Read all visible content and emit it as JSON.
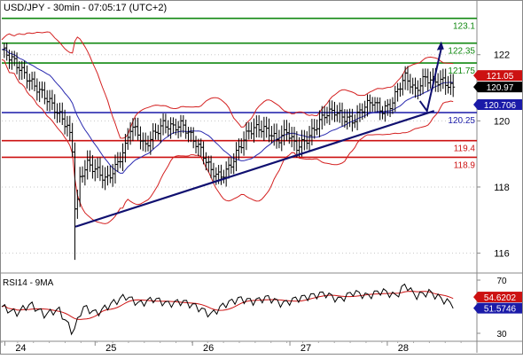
{
  "chart_data": {
    "type": "candlestick",
    "title": "USD/JPY - 30min - 07:05:17 (UTC+2)",
    "price_axis": {
      "ylim": [
        115.4,
        123.6
      ],
      "ticks": [
        116,
        118,
        120,
        122
      ]
    },
    "x_axis": {
      "tick_labels": [
        "24",
        "25",
        "26",
        "27",
        "28"
      ]
    },
    "colors": {
      "resistance": "#118811",
      "support": "#cc1111",
      "pivot": "#1a1aa8",
      "trendline": "#101070",
      "bollinger": "#d42020",
      "moving_average": "#2a2ab0",
      "price_bars": "#000000",
      "rsi_line": "#000000",
      "rsi_ma": "#cc1111"
    },
    "horizontal_levels": [
      {
        "name": "resistance-3",
        "value": 123.1,
        "label": "123.1",
        "role": "resistance"
      },
      {
        "name": "resistance-2",
        "value": 122.35,
        "label": "122.35",
        "role": "resistance"
      },
      {
        "name": "resistance-1",
        "value": 121.75,
        "label": "121.75",
        "role": "resistance"
      },
      {
        "name": "pivot",
        "value": 120.25,
        "label": "120.25",
        "role": "pivot"
      },
      {
        "name": "support-1",
        "value": 119.4,
        "label": "119.4",
        "role": "support"
      },
      {
        "name": "support-2",
        "value": 118.9,
        "label": "118.9",
        "role": "support"
      }
    ],
    "price_tags": [
      {
        "value": 121.05,
        "label": "121.05",
        "bg": "#cc1111",
        "fg": "#ffffff"
      },
      {
        "value": 120.97,
        "label": "120.97",
        "bg": "#000000",
        "fg": "#ffffff"
      },
      {
        "value": 120.706,
        "label": "120.706",
        "bg": "#1a1aa8",
        "fg": "#ffffff"
      }
    ],
    "trendline": {
      "from": [
        0,
        116.8
      ],
      "to": [
        1.0,
        120.3
      ]
    },
    "projection_arrow": {
      "from": [
        0.955,
        120.6
      ],
      "mid": [
        0.967,
        121.0
      ],
      "to": [
        1.0,
        122.35
      ]
    },
    "price_path": [
      [
        0.0,
        122.15
      ],
      [
        0.02,
        121.9
      ],
      [
        0.04,
        121.55
      ],
      [
        0.06,
        121.2
      ],
      [
        0.08,
        120.9
      ],
      [
        0.1,
        120.6
      ],
      [
        0.12,
        120.2
      ],
      [
        0.14,
        119.8
      ],
      [
        0.15,
        119.0
      ],
      [
        0.155,
        117.0
      ],
      [
        0.165,
        118.3
      ],
      [
        0.18,
        118.7
      ],
      [
        0.2,
        118.5
      ],
      [
        0.22,
        118.2
      ],
      [
        0.24,
        118.6
      ],
      [
        0.26,
        119.2
      ],
      [
        0.27,
        119.8
      ],
      [
        0.285,
        119.7
      ],
      [
        0.3,
        119.2
      ],
      [
        0.32,
        119.6
      ],
      [
        0.34,
        119.9
      ],
      [
        0.36,
        119.8
      ],
      [
        0.38,
        119.9
      ],
      [
        0.4,
        119.5
      ],
      [
        0.42,
        119.1
      ],
      [
        0.44,
        118.5
      ],
      [
        0.46,
        118.3
      ],
      [
        0.48,
        118.6
      ],
      [
        0.5,
        119.2
      ],
      [
        0.52,
        119.7
      ],
      [
        0.54,
        119.8
      ],
      [
        0.56,
        119.7
      ],
      [
        0.58,
        119.4
      ],
      [
        0.6,
        119.7
      ],
      [
        0.62,
        119.2
      ],
      [
        0.64,
        119.4
      ],
      [
        0.66,
        119.8
      ],
      [
        0.68,
        120.2
      ],
      [
        0.7,
        120.3
      ],
      [
        0.72,
        120.1
      ],
      [
        0.74,
        120.0
      ],
      [
        0.76,
        120.4
      ],
      [
        0.78,
        120.6
      ],
      [
        0.8,
        120.3
      ],
      [
        0.82,
        120.5
      ],
      [
        0.835,
        121.0
      ],
      [
        0.85,
        121.35
      ],
      [
        0.87,
        120.9
      ],
      [
        0.89,
        121.3
      ],
      [
        0.91,
        121.2
      ],
      [
        0.93,
        121.2
      ],
      [
        0.95,
        120.97
      ]
    ],
    "rsi": {
      "label": "RSI14 - 9MA",
      "ylim": [
        24,
        74
      ],
      "ticks": [
        30,
        70
      ],
      "tags": [
        {
          "value": 54.6202,
          "label": "54.6202",
          "bg": "#cc1111",
          "fg": "#ffffff"
        },
        {
          "value": 51.5746,
          "label": "51.5746",
          "bg": "#1a1aa8",
          "fg": "#ffffff"
        }
      ],
      "path": [
        [
          0.0,
          50
        ],
        [
          0.03,
          45
        ],
        [
          0.06,
          52
        ],
        [
          0.09,
          44
        ],
        [
          0.12,
          48
        ],
        [
          0.15,
          30
        ],
        [
          0.17,
          50
        ],
        [
          0.2,
          45
        ],
        [
          0.23,
          52
        ],
        [
          0.26,
          58
        ],
        [
          0.29,
          52
        ],
        [
          0.32,
          56
        ],
        [
          0.35,
          52
        ],
        [
          0.38,
          54
        ],
        [
          0.41,
          50
        ],
        [
          0.44,
          44
        ],
        [
          0.47,
          52
        ],
        [
          0.5,
          56
        ],
        [
          0.53,
          54
        ],
        [
          0.56,
          57
        ],
        [
          0.59,
          52
        ],
        [
          0.62,
          56
        ],
        [
          0.65,
          58
        ],
        [
          0.68,
          60
        ],
        [
          0.71,
          55
        ],
        [
          0.74,
          61
        ],
        [
          0.77,
          58
        ],
        [
          0.8,
          62
        ],
        [
          0.83,
          58
        ],
        [
          0.85,
          67
        ],
        [
          0.87,
          58
        ],
        [
          0.9,
          61
        ],
        [
          0.93,
          55
        ],
        [
          0.95,
          51.6
        ]
      ]
    }
  }
}
